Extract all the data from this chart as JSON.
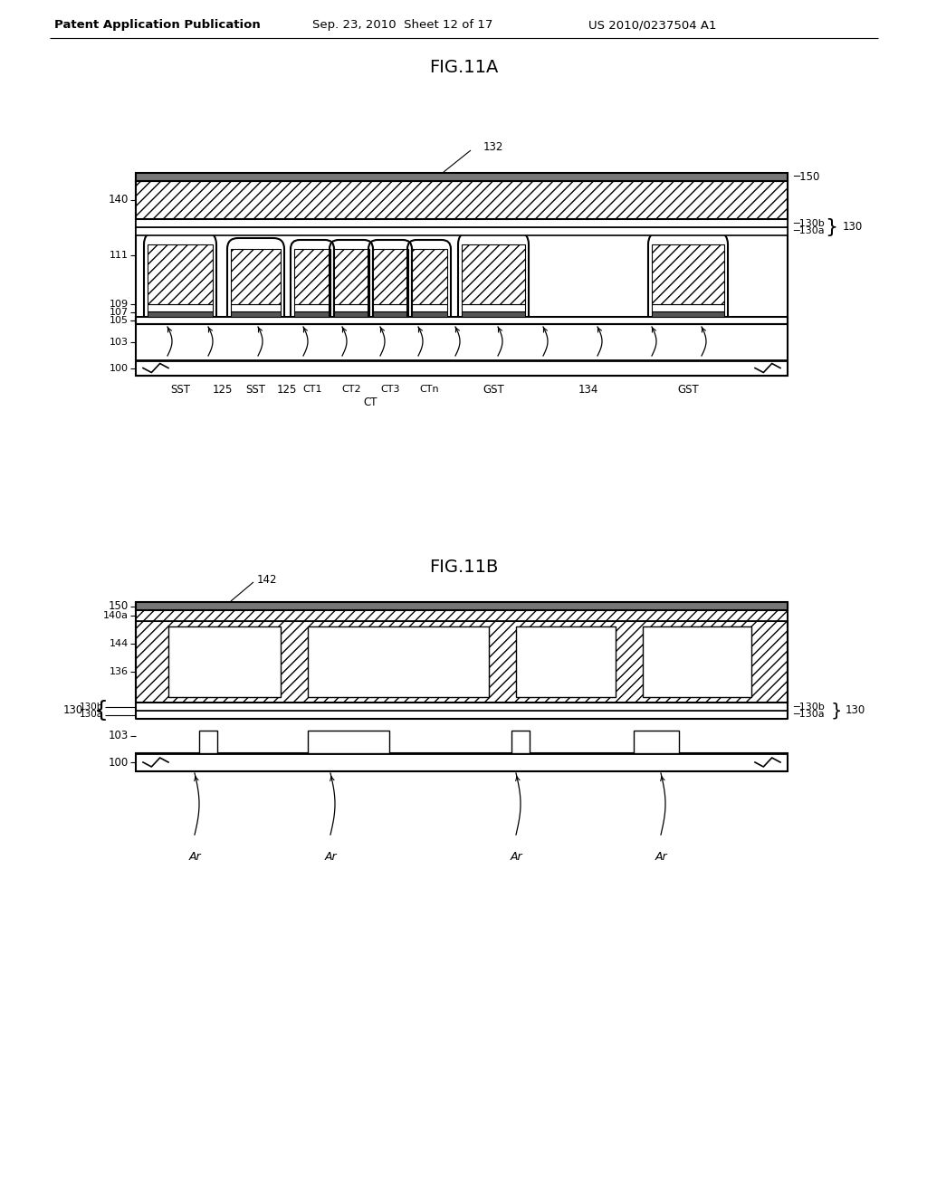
{
  "background_color": "#ffffff",
  "header_left": "Patent Application Publication",
  "header_mid": "Sep. 23, 2010  Sheet 12 of 17",
  "header_right": "US 2010/0237504 A1",
  "fig11a_title": "FIG.11A",
  "fig11b_title": "FIG.11B"
}
